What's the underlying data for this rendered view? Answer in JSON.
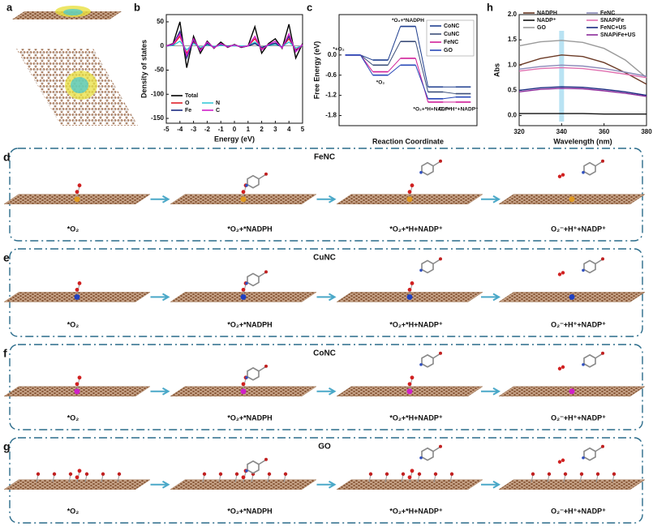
{
  "panel_a": "a",
  "chart_data": [
    {
      "type": "line",
      "panel": "b",
      "xlabel": "Energy (eV)",
      "ylabel": "Density of states",
      "x": [
        -5,
        -4.5,
        -4,
        -3.5,
        -3,
        -2.5,
        -2,
        -1.5,
        -1,
        -0.5,
        0,
        0.5,
        1,
        1.5,
        2,
        2.5,
        3,
        3.5,
        4,
        4.5,
        5
      ],
      "xlim": [
        -5,
        5
      ],
      "xticks": [
        -5,
        -4,
        -3,
        -2,
        -1,
        0,
        1,
        2,
        3,
        4,
        5
      ],
      "ylim": [
        -160,
        65
      ],
      "yticks": [
        50,
        0,
        -50,
        -100,
        -150
      ],
      "legend": "lower left",
      "series": [
        {
          "name": "Total",
          "color": "#000000",
          "values": [
            0,
            5,
            50,
            -45,
            20,
            -15,
            10,
            -5,
            8,
            -3,
            3,
            -3,
            0,
            40,
            -15,
            5,
            15,
            -5,
            45,
            -25,
            5
          ]
        },
        {
          "name": "O",
          "color": "#e0202a",
          "values": [
            0,
            2,
            20,
            -15,
            8,
            -5,
            3,
            -2,
            2,
            0,
            1,
            -1,
            0,
            15,
            -5,
            2,
            5,
            -2,
            15,
            -8,
            2
          ]
        },
        {
          "name": "N",
          "color": "#38c8d8",
          "values": [
            0,
            1,
            10,
            -8,
            5,
            -3,
            2,
            -1,
            1,
            0,
            0,
            0,
            0,
            8,
            -3,
            1,
            3,
            -1,
            8,
            -4,
            1
          ]
        },
        {
          "name": "Fe",
          "color": "#1a2a80",
          "values": [
            0,
            3,
            30,
            -25,
            12,
            -8,
            5,
            -3,
            4,
            -1,
            2,
            -2,
            0,
            5,
            -3,
            2,
            6,
            -3,
            20,
            -10,
            2
          ]
        },
        {
          "name": "C",
          "color": "#d020c8",
          "values": [
            0,
            4,
            25,
            -20,
            15,
            -10,
            8,
            -4,
            5,
            -2,
            2,
            -2,
            0,
            20,
            -8,
            3,
            10,
            -4,
            25,
            -12,
            3
          ]
        }
      ]
    },
    {
      "type": "step",
      "panel": "c",
      "xlabel": "Reaction Coordinate",
      "ylabel": "Free Energy (eV)",
      "categories": [
        null,
        null,
        null,
        null,
        null
      ],
      "level_labels": [
        "*+O₂",
        "*O₂",
        "*O₂+*NADPH",
        "*O₂+*H+NADP⁺",
        "O₂⁻+H⁺+NADP⁺"
      ],
      "ylim": [
        -2.1,
        1.2
      ],
      "yticks": [
        {
          "value": 0,
          "label": "0.0"
        },
        -0.6,
        -1.2,
        -1.8
      ],
      "legend": "upper right",
      "series": [
        {
          "name": "CoNC",
          "color": "#1f3f8f",
          "values": [
            0,
            -0.15,
            0.85,
            -0.95,
            -0.95
          ]
        },
        {
          "name": "CuNC",
          "color": "#3c4f7a",
          "values": [
            0,
            -0.3,
            0.4,
            -1.1,
            -1.15
          ]
        },
        {
          "name": "FeNC",
          "color": "#d0209a",
          "values": [
            0,
            -0.5,
            -0.1,
            -1.4,
            -1.4
          ]
        },
        {
          "name": "GO",
          "color": "#2848b8",
          "values": [
            0,
            -0.6,
            -0.3,
            -1.3,
            -1.25
          ]
        }
      ]
    },
    {
      "type": "line",
      "panel": "h",
      "xlabel": "Wavelength (nm)",
      "ylabel": "Abs",
      "x": [
        320,
        330,
        340,
        350,
        360,
        370,
        380
      ],
      "xlim": [
        320,
        380
      ],
      "xticks": [
        320,
        340,
        360,
        380
      ],
      "ylim": [
        -0.2,
        2.0
      ],
      "yticks": [
        {
          "value": 0,
          "label": "0.0"
        },
        0.5,
        {
          "value": 1,
          "label": "1.0"
        },
        1.5,
        {
          "value": 2,
          "label": "2.0"
        }
      ],
      "legend": "upper",
      "highlight_x": 340,
      "series": [
        {
          "name": "NADPH",
          "color": "#6b3a26",
          "values": [
            1.0,
            1.13,
            1.2,
            1.17,
            1.05,
            0.85,
            0.62
          ]
        },
        {
          "name": "NADP⁺",
          "color": "#111111",
          "values": [
            0.04,
            0.04,
            0.04,
            0.04,
            0.03,
            0.03,
            0.03
          ]
        },
        {
          "name": "GO",
          "color": "#9a9a9a",
          "values": [
            1.38,
            1.46,
            1.49,
            1.45,
            1.33,
            1.1,
            0.75
          ]
        },
        {
          "name": "FeNC",
          "color": "#8a8ab8",
          "values": [
            0.92,
            0.97,
            1.0,
            0.98,
            0.93,
            0.86,
            0.78
          ]
        },
        {
          "name": "SNAPiFe",
          "color": "#e070b0",
          "values": [
            0.88,
            0.93,
            0.95,
            0.93,
            0.88,
            0.82,
            0.75
          ]
        },
        {
          "name": "FeNC+US",
          "color": "#1a2a80",
          "values": [
            0.5,
            0.55,
            0.57,
            0.56,
            0.52,
            0.47,
            0.4
          ]
        },
        {
          "name": "SNAPiFe+US",
          "color": "#8a2a9a",
          "values": [
            0.47,
            0.52,
            0.54,
            0.53,
            0.49,
            0.44,
            0.38
          ]
        }
      ]
    }
  ],
  "rows": [
    {
      "panel": "d",
      "title": "FeNC",
      "steps": [
        "*O₂",
        "*O₂+*NADPH",
        "*O₂+*H+NADP⁺",
        "O₂⁻+H⁺+NADP⁺"
      ]
    },
    {
      "panel": "e",
      "title": "CuNC",
      "steps": [
        "*O₂",
        "*O₂+*NADPH",
        "*O₂+*H+NADP⁺",
        "O₂⁻+H⁺+NADP⁺"
      ]
    },
    {
      "panel": "f",
      "title": "CoNC",
      "steps": [
        "*O₂",
        "*O₂+*NADPH",
        "*O₂+*H+NADP⁺",
        "O₂⁻+H⁺+NADP⁺"
      ]
    },
    {
      "panel": "g",
      "title": "GO",
      "steps": [
        "*O₂",
        "*O₂+*NADPH",
        "*O₂+*H+NADP⁺",
        "O₂⁻+H⁺+NADP⁺"
      ]
    }
  ]
}
